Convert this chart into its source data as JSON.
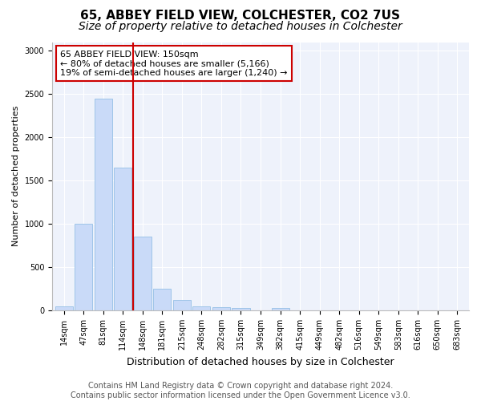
{
  "title1": "65, ABBEY FIELD VIEW, COLCHESTER, CO2 7US",
  "title2": "Size of property relative to detached houses in Colchester",
  "xlabel": "Distribution of detached houses by size in Colchester",
  "ylabel": "Number of detached properties",
  "categories": [
    "14sqm",
    "47sqm",
    "81sqm",
    "114sqm",
    "148sqm",
    "181sqm",
    "215sqm",
    "248sqm",
    "282sqm",
    "315sqm",
    "349sqm",
    "382sqm",
    "415sqm",
    "449sqm",
    "482sqm",
    "516sqm",
    "549sqm",
    "583sqm",
    "616sqm",
    "650sqm",
    "683sqm"
  ],
  "values": [
    50,
    1000,
    2450,
    1650,
    850,
    250,
    120,
    50,
    40,
    30,
    5,
    30,
    5,
    0,
    0,
    0,
    0,
    0,
    0,
    0,
    0
  ],
  "bar_color": "#c9daf8",
  "bar_edge_color": "#9fc5e8",
  "property_line_color": "#cc0000",
  "annotation_line1": "65 ABBEY FIELD VIEW: 150sqm",
  "annotation_line2": "← 80% of detached houses are smaller (5,166)",
  "annotation_line3": "19% of semi-detached houses are larger (1,240) →",
  "annotation_box_color": "#cc0000",
  "ylim": [
    0,
    3100
  ],
  "yticks": [
    0,
    500,
    1000,
    1500,
    2000,
    2500,
    3000
  ],
  "background_color": "#eef2fb",
  "footer_text": "Contains HM Land Registry data © Crown copyright and database right 2024.\nContains public sector information licensed under the Open Government Licence v3.0.",
  "title1_fontsize": 11,
  "title2_fontsize": 10,
  "xlabel_fontsize": 9,
  "ylabel_fontsize": 8,
  "tick_fontsize": 7,
  "annotation_fontsize": 8,
  "footer_fontsize": 7
}
